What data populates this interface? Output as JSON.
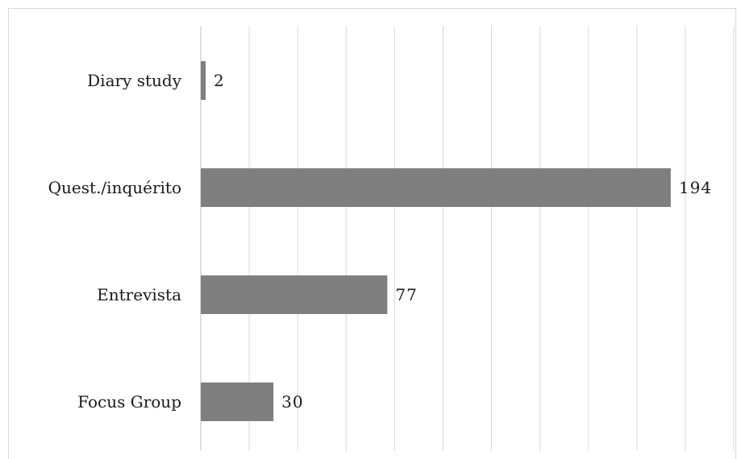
{
  "chart_data": {
    "type": "bar",
    "orientation": "horizontal",
    "categories": [
      "Diary study",
      "Quest./inquérito",
      "Entrevista",
      "Focus Group"
    ],
    "values": [
      2,
      194,
      77,
      30
    ],
    "xlim": [
      0,
      220
    ],
    "grid": true,
    "gridline_step": 20,
    "bar_color": "#7f7f7f",
    "grid_color": "#d9d9d9"
  }
}
